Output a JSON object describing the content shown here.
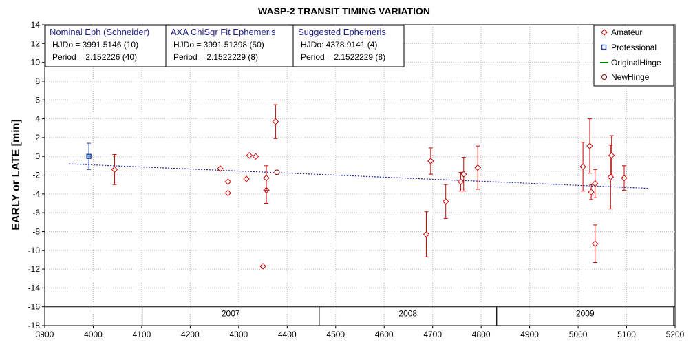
{
  "chart_data": {
    "type": "scatter",
    "title": "WASP-2 TRANSIT TIMING VARIATION",
    "ylabel": "EARLY or LATE [min]",
    "xlim": [
      3900,
      5200
    ],
    "ylim": [
      -18,
      14
    ],
    "xticks": [
      "3900",
      "4000",
      "4100",
      "4200",
      "4300",
      "4400",
      "4500",
      "4600",
      "4700",
      "4800",
      "4900",
      "5000",
      "5100",
      "5200"
    ],
    "yticks": [
      "14",
      "12",
      "10",
      "8",
      "6",
      "4",
      "2",
      "0",
      "-2",
      "-4",
      "-6",
      "-8",
      "-10",
      "-12",
      "-14",
      "-16",
      "-18"
    ],
    "grid": true,
    "legend_position": "top-right",
    "legend": [
      "Amateur",
      "Professional",
      "OriginalHinge",
      "NewHinge"
    ],
    "years": [
      {
        "label": "2007",
        "start": 4101,
        "end": 4466
      },
      {
        "label": "2008",
        "start": 4466,
        "end": 4832
      },
      {
        "label": "2009",
        "start": 4832,
        "end": 5197
      }
    ],
    "info_boxes": [
      {
        "title": "Nominal Eph (Schneider)",
        "line1": "HJDo = 3991.5146 (10)",
        "line2": "Period = 2.152226 (40)"
      },
      {
        "title": "AXA ChiSqr Fit Ephemeris",
        "line1": "HJDo = 3991.51398 (50)",
        "line2": "Period = 2.1522229 (8)"
      },
      {
        "title": "Suggested Ephemeris",
        "line1": "HJDo:  4378.9141 (4)",
        "line2": "Period = 2.1522229 (8)"
      }
    ],
    "trend_line": {
      "x": [
        3950,
        5145
      ],
      "y": [
        -0.8,
        -3.4
      ]
    },
    "series": [
      {
        "name": "Professional",
        "color": "#1f3f9f",
        "points": [
          {
            "x": 3991,
            "y": 0,
            "err": 1.4
          }
        ]
      },
      {
        "name": "Amateur",
        "color": "#cc0000",
        "points": [
          {
            "x": 4044,
            "y": -1.4,
            "err": 1.6
          },
          {
            "x": 4262,
            "y": -1.3,
            "err": 0
          },
          {
            "x": 4278,
            "y": -2.7,
            "err": 0
          },
          {
            "x": 4278,
            "y": -3.9,
            "err": 0
          },
          {
            "x": 4316,
            "y": -2.4,
            "err": 0
          },
          {
            "x": 4322,
            "y": 0.1,
            "err": 0
          },
          {
            "x": 4335,
            "y": 0.0,
            "err": 0
          },
          {
            "x": 4350,
            "y": -11.7,
            "err": 0
          },
          {
            "x": 4357,
            "y": -3.6,
            "err": 1.4
          },
          {
            "x": 4357,
            "y": -2.3,
            "err": 1.3
          },
          {
            "x": 4376,
            "y": 3.7,
            "err": 1.8
          },
          {
            "x": 4687,
            "y": -8.3,
            "err": 2.4
          },
          {
            "x": 4696,
            "y": -0.5,
            "err": 1.4
          },
          {
            "x": 4727,
            "y": -4.8,
            "err": 1.8
          },
          {
            "x": 4758,
            "y": -2.7,
            "err": 1.0
          },
          {
            "x": 4764,
            "y": -1.9,
            "err": 1.8
          },
          {
            "x": 4793,
            "y": -1.2,
            "err": 2.3
          },
          {
            "x": 5010,
            "y": -1.1,
            "err": 2.6
          },
          {
            "x": 5024,
            "y": 1.1,
            "err": 2.9
          },
          {
            "x": 5027,
            "y": -3.8,
            "err": 0.8
          },
          {
            "x": 5035,
            "y": -2.9,
            "err": 1.5
          },
          {
            "x": 5035,
            "y": -9.3,
            "err": 2.0
          },
          {
            "x": 5067,
            "y": -2.2,
            "err": 3.4
          },
          {
            "x": 5069,
            "y": 0.1,
            "err": 2.1
          },
          {
            "x": 5095,
            "y": -2.3,
            "err": 1.3
          }
        ]
      },
      {
        "name": "NewHinge",
        "color": "#800000",
        "points": [
          {
            "x": 4379,
            "y": -1.7,
            "err": 0
          }
        ]
      }
    ]
  },
  "colors": {
    "amateur": "#cc0000",
    "professional": "#1f3f9f",
    "original_hinge": "#008000",
    "new_hinge": "#800000",
    "trend": "#1f1f9f",
    "grid": "#b8b8b8"
  }
}
